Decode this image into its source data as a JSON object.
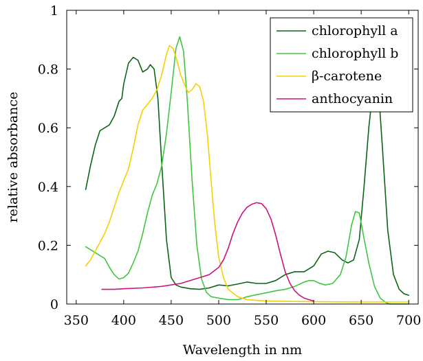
{
  "chart_data": {
    "type": "line",
    "title": "",
    "xlabel": "Wavelength in nm",
    "ylabel": "relative absorbance",
    "xlim": [
      340,
      710
    ],
    "ylim": [
      0,
      1
    ],
    "xticks": [
      350,
      400,
      450,
      500,
      550,
      600,
      650,
      700
    ],
    "yticks": [
      0,
      0.2,
      0.4,
      0.6,
      0.8,
      1
    ],
    "ytick_labels": [
      "0",
      "0.2",
      "0.4",
      "0.6",
      "0.8",
      "1"
    ],
    "grid": false,
    "legend_position": "top-right",
    "series": [
      {
        "name": "chlorophyll a",
        "color": "#0a6414",
        "points": [
          [
            360,
            0.39
          ],
          [
            365,
            0.47
          ],
          [
            370,
            0.54
          ],
          [
            375,
            0.59
          ],
          [
            380,
            0.6
          ],
          [
            385,
            0.61
          ],
          [
            390,
            0.64
          ],
          [
            395,
            0.69
          ],
          [
            398,
            0.7
          ],
          [
            400,
            0.75
          ],
          [
            405,
            0.82
          ],
          [
            410,
            0.84
          ],
          [
            415,
            0.83
          ],
          [
            420,
            0.79
          ],
          [
            425,
            0.8
          ],
          [
            428,
            0.815
          ],
          [
            432,
            0.8
          ],
          [
            436,
            0.7
          ],
          [
            440,
            0.48
          ],
          [
            445,
            0.22
          ],
          [
            450,
            0.09
          ],
          [
            455,
            0.065
          ],
          [
            460,
            0.058
          ],
          [
            470,
            0.052
          ],
          [
            480,
            0.05
          ],
          [
            490,
            0.055
          ],
          [
            500,
            0.065
          ],
          [
            510,
            0.062
          ],
          [
            520,
            0.068
          ],
          [
            530,
            0.075
          ],
          [
            540,
            0.07
          ],
          [
            550,
            0.07
          ],
          [
            560,
            0.08
          ],
          [
            570,
            0.1
          ],
          [
            580,
            0.11
          ],
          [
            590,
            0.11
          ],
          [
            600,
            0.13
          ],
          [
            608,
            0.17
          ],
          [
            615,
            0.18
          ],
          [
            622,
            0.175
          ],
          [
            630,
            0.15
          ],
          [
            636,
            0.14
          ],
          [
            642,
            0.15
          ],
          [
            648,
            0.22
          ],
          [
            653,
            0.4
          ],
          [
            658,
            0.6
          ],
          [
            662,
            0.72
          ],
          [
            665,
            0.77
          ],
          [
            668,
            0.74
          ],
          [
            672,
            0.55
          ],
          [
            678,
            0.25
          ],
          [
            684,
            0.1
          ],
          [
            690,
            0.05
          ],
          [
            695,
            0.035
          ],
          [
            700,
            0.03
          ]
        ]
      },
      {
        "name": "chlorophyll b",
        "color": "#3ec63e",
        "points": [
          [
            360,
            0.195
          ],
          [
            365,
            0.185
          ],
          [
            370,
            0.175
          ],
          [
            375,
            0.165
          ],
          [
            380,
            0.155
          ],
          [
            385,
            0.125
          ],
          [
            390,
            0.1
          ],
          [
            395,
            0.085
          ],
          [
            400,
            0.09
          ],
          [
            405,
            0.105
          ],
          [
            410,
            0.14
          ],
          [
            415,
            0.18
          ],
          [
            420,
            0.24
          ],
          [
            425,
            0.31
          ],
          [
            430,
            0.37
          ],
          [
            435,
            0.41
          ],
          [
            440,
            0.47
          ],
          [
            445,
            0.58
          ],
          [
            450,
            0.72
          ],
          [
            455,
            0.87
          ],
          [
            459,
            0.91
          ],
          [
            463,
            0.86
          ],
          [
            467,
            0.69
          ],
          [
            472,
            0.42
          ],
          [
            477,
            0.2
          ],
          [
            482,
            0.085
          ],
          [
            487,
            0.04
          ],
          [
            492,
            0.025
          ],
          [
            500,
            0.02
          ],
          [
            510,
            0.015
          ],
          [
            520,
            0.015
          ],
          [
            530,
            0.025
          ],
          [
            540,
            0.032
          ],
          [
            550,
            0.038
          ],
          [
            560,
            0.045
          ],
          [
            570,
            0.05
          ],
          [
            580,
            0.06
          ],
          [
            590,
            0.075
          ],
          [
            595,
            0.08
          ],
          [
            600,
            0.08
          ],
          [
            605,
            0.072
          ],
          [
            612,
            0.065
          ],
          [
            620,
            0.07
          ],
          [
            628,
            0.1
          ],
          [
            634,
            0.16
          ],
          [
            640,
            0.27
          ],
          [
            644,
            0.315
          ],
          [
            648,
            0.31
          ],
          [
            652,
            0.24
          ],
          [
            658,
            0.14
          ],
          [
            664,
            0.06
          ],
          [
            670,
            0.02
          ],
          [
            676,
            0.005
          ],
          [
            680,
            0.0
          ],
          [
            700,
            0.0
          ]
        ]
      },
      {
        "name": "β-carotene",
        "color": "#f5d000",
        "points": [
          [
            360,
            0.13
          ],
          [
            365,
            0.15
          ],
          [
            370,
            0.18
          ],
          [
            375,
            0.21
          ],
          [
            380,
            0.24
          ],
          [
            385,
            0.28
          ],
          [
            390,
            0.33
          ],
          [
            395,
            0.38
          ],
          [
            400,
            0.42
          ],
          [
            405,
            0.46
          ],
          [
            410,
            0.53
          ],
          [
            415,
            0.61
          ],
          [
            420,
            0.66
          ],
          [
            425,
            0.68
          ],
          [
            430,
            0.7
          ],
          [
            435,
            0.73
          ],
          [
            440,
            0.78
          ],
          [
            445,
            0.85
          ],
          [
            448,
            0.88
          ],
          [
            452,
            0.87
          ],
          [
            456,
            0.83
          ],
          [
            460,
            0.78
          ],
          [
            465,
            0.74
          ],
          [
            468,
            0.72
          ],
          [
            472,
            0.73
          ],
          [
            476,
            0.75
          ],
          [
            480,
            0.74
          ],
          [
            484,
            0.69
          ],
          [
            488,
            0.58
          ],
          [
            492,
            0.42
          ],
          [
            496,
            0.27
          ],
          [
            500,
            0.16
          ],
          [
            505,
            0.09
          ],
          [
            510,
            0.05
          ],
          [
            520,
            0.025
          ],
          [
            530,
            0.015
          ],
          [
            550,
            0.01
          ],
          [
            600,
            0.008
          ],
          [
            650,
            0.007
          ],
          [
            700,
            0.007
          ]
        ]
      },
      {
        "name": "anthocyanin",
        "color": "#cc1180",
        "points": [
          [
            377,
            0.05
          ],
          [
            390,
            0.05
          ],
          [
            400,
            0.052
          ],
          [
            420,
            0.055
          ],
          [
            440,
            0.06
          ],
          [
            460,
            0.07
          ],
          [
            480,
            0.09
          ],
          [
            490,
            0.1
          ],
          [
            500,
            0.125
          ],
          [
            505,
            0.15
          ],
          [
            510,
            0.19
          ],
          [
            515,
            0.24
          ],
          [
            520,
            0.28
          ],
          [
            525,
            0.31
          ],
          [
            530,
            0.33
          ],
          [
            535,
            0.34
          ],
          [
            540,
            0.345
          ],
          [
            545,
            0.342
          ],
          [
            550,
            0.325
          ],
          [
            555,
            0.29
          ],
          [
            560,
            0.235
          ],
          [
            565,
            0.17
          ],
          [
            570,
            0.11
          ],
          [
            575,
            0.07
          ],
          [
            580,
            0.045
          ],
          [
            585,
            0.03
          ],
          [
            590,
            0.02
          ],
          [
            595,
            0.015
          ],
          [
            600,
            0.01
          ]
        ]
      }
    ]
  }
}
